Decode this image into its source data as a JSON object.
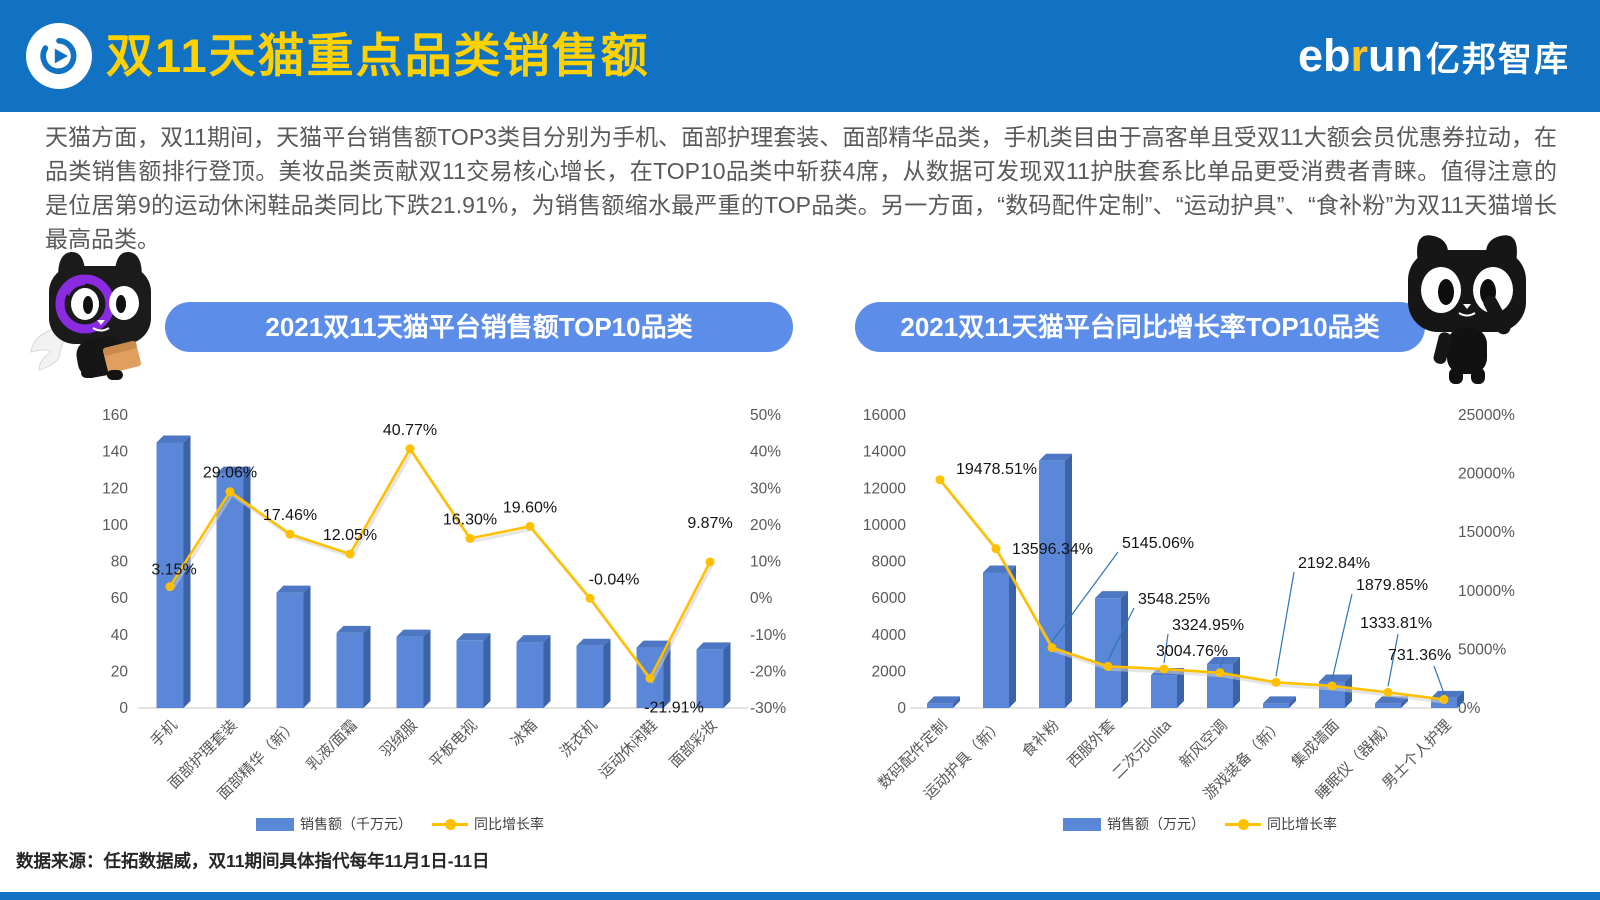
{
  "header": {
    "title": "双11天猫重点品类销售额",
    "brand": {
      "eb": "eb",
      "r": "r",
      "un": "un",
      "cn": "亿邦智库"
    }
  },
  "intro": "天猫方面，双11期间，天猫平台销售额TOP3类目分别为手机、面部护理套装、面部精华品类，手机类目由于高客单且受双11大额会员优惠券拉动，在品类销售额排行登顶。美妆品类贡献双11交易核心增长，在TOP10品类中斩获4席，从数据可发现双11护肤套系比单品更受消费者青睐。值得注意的是位居第9的运动休闲鞋品类同比下跌21.91%，为销售额缩水最严重的TOP品类。另一方面，“数码配件定制”、“运动护具”、“食补粉”为双11天猫增长最高品类。",
  "footer": {
    "source": "数据来源：任拓数据威，双11期间具体指代每年11月1日-11日"
  },
  "icons": {
    "header_logo": "ebrun-circle-play-icon",
    "mascot_left": "tmall-cat-with-box-icon",
    "mascot_right": "tmall-cat-waving-icon"
  },
  "colors": {
    "header_blue": "#1172C3",
    "title_yellow": "#FFD100",
    "banner_blue": "#5B8DE9",
    "bar_front": "#5A87D7",
    "bar_side": "#3C63A8",
    "bar_top": "#4D77C2",
    "line_yellow": "#FFC000",
    "leader_blue": "#2E75B6"
  },
  "chart_data": [
    {
      "type": "bar+line",
      "title": "2021双11天猫平台销售额TOP10品类",
      "categories": [
        "手机",
        "面部护理套装",
        "面部精华（新）",
        "乳液/面霜",
        "羽绒服",
        "平板电视",
        "冰箱",
        "洗衣机",
        "运动休闲鞋",
        "面部彩妆"
      ],
      "series": [
        {
          "name": "销售额（千万元）",
          "type": "bar",
          "axis": "left",
          "values": [
            145,
            128,
            63,
            41,
            39,
            37,
            36,
            34,
            33,
            32
          ]
        },
        {
          "name": "同比增长率",
          "type": "line",
          "axis": "right",
          "values": [
            3.15,
            29.06,
            17.46,
            12.05,
            40.77,
            16.3,
            19.6,
            -0.04,
            -21.91,
            9.87
          ],
          "labels": [
            "3.15%",
            "29.06%",
            "17.46%",
            "12.05%",
            "40.77%",
            "16.30%",
            "19.60%",
            "-0.04%",
            "-21.91%",
            "9.87%"
          ]
        }
      ],
      "left_axis": {
        "min": 0,
        "max": 160,
        "ticks": [
          "0",
          "20",
          "40",
          "60",
          "80",
          "100",
          "120",
          "140",
          "160"
        ]
      },
      "right_axis": {
        "min": -30,
        "max": 50,
        "ticks": [
          "-30%",
          "-20%",
          "-10%",
          "0%",
          "10%",
          "20%",
          "30%",
          "40%",
          "50%"
        ]
      },
      "legend_position": "bottom",
      "grid": false
    },
    {
      "type": "bar+line",
      "title": "2021双11天猫平台同比增长率TOP10品类",
      "categories": [
        "数码配件定制",
        "运动护具（新）",
        "食补粉",
        "西服外套",
        "二次元lolita",
        "新风空调",
        "游戏装备（新）",
        "集成墙面",
        "睡眠仪（器械）",
        "男士个人护理"
      ],
      "series": [
        {
          "name": "销售额（万元）",
          "type": "bar",
          "axis": "left",
          "values": [
            250,
            7400,
            13500,
            6000,
            1800,
            2400,
            250,
            1450,
            250,
            550
          ]
        },
        {
          "name": "同比增长率",
          "type": "line",
          "axis": "right",
          "values": [
            19478.51,
            13596.34,
            5145.06,
            3548.25,
            3324.95,
            3004.76,
            2192.84,
            1879.85,
            1333.81,
            731.36
          ],
          "labels": [
            "19478.51%",
            "13596.34%",
            "5145.06%",
            "3548.25%",
            "3324.95%",
            "3004.76%",
            "2192.84%",
            "1879.85%",
            "1333.81%",
            "731.36%"
          ]
        }
      ],
      "left_axis": {
        "min": 0,
        "max": 16000,
        "ticks": [
          "0",
          "2000",
          "4000",
          "6000",
          "8000",
          "10000",
          "12000",
          "14000",
          "16000"
        ]
      },
      "right_axis": {
        "min": 0,
        "max": 25000,
        "ticks": [
          "0%",
          "5000%",
          "10000%",
          "15000%",
          "20000%",
          "25000%"
        ]
      },
      "legend_position": "bottom",
      "grid": false
    }
  ]
}
